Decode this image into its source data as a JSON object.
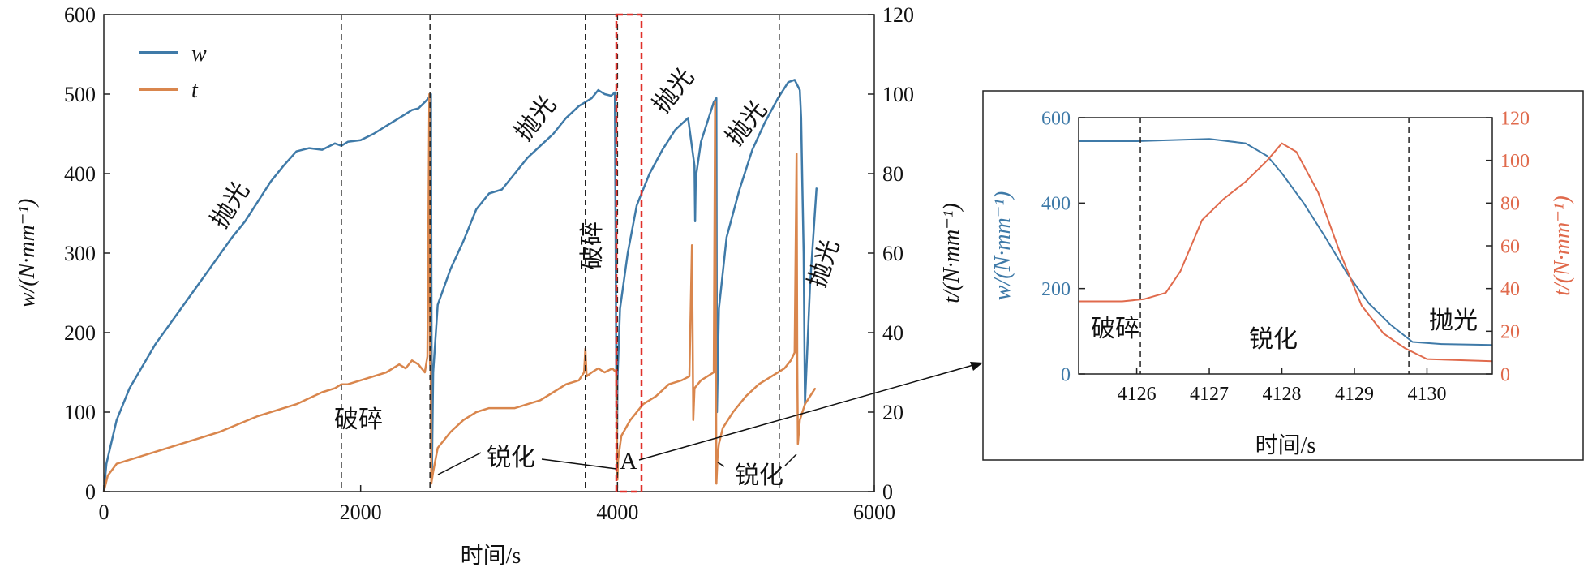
{
  "chart_data": [
    {
      "type": "line",
      "xlabel": "时间/s",
      "ylabel": "w/(N·mm⁻¹)",
      "ylabel2": "t/(N·mm⁻¹)",
      "xlim": [
        0,
        6000
      ],
      "ylim": [
        0,
        600
      ],
      "ylim2": [
        0,
        120
      ],
      "xticks": [
        "0",
        "2000",
        "4000",
        "6000"
      ],
      "yticks": [
        "0",
        "100",
        "200",
        "300",
        "400",
        "500",
        "600"
      ],
      "yticks2": [
        "0",
        "20",
        "40",
        "60",
        "80",
        "100",
        "120"
      ],
      "legend": {
        "position": "top-left",
        "entries": [
          "w",
          "t"
        ]
      },
      "series": [
        {
          "name": "w",
          "color": "#3f7aa8",
          "axis": "left",
          "x": [
            0,
            20,
            100,
            200,
            400,
            600,
            800,
            1000,
            1100,
            1200,
            1300,
            1400,
            1500,
            1600,
            1700,
            1800,
            1850,
            1900,
            2000,
            2100,
            2200,
            2300,
            2400,
            2450,
            2500,
            2530,
            2548,
            2555,
            2565,
            2600,
            2700,
            2800,
            2900,
            3000,
            3100,
            3200,
            3300,
            3400,
            3500,
            3600,
            3700,
            3750,
            3800,
            3850,
            3900,
            3950,
            3980,
            3995,
            4000,
            4020,
            4080,
            4150,
            4250,
            4350,
            4450,
            4550,
            4600,
            4605,
            4610,
            4650,
            4700,
            4750,
            4770,
            4775,
            4790,
            4850,
            4950,
            5050,
            5150,
            5250,
            5330,
            5380,
            5420,
            5430,
            5440,
            5450,
            5460,
            5500,
            5550
          ],
          "values": [
            0,
            35,
            90,
            130,
            185,
            230,
            275,
            320,
            340,
            365,
            390,
            410,
            428,
            432,
            430,
            438,
            435,
            440,
            442,
            450,
            460,
            470,
            480,
            482,
            490,
            495,
            500,
            20,
            150,
            235,
            280,
            315,
            355,
            375,
            380,
            400,
            420,
            435,
            450,
            470,
            485,
            490,
            495,
            505,
            500,
            498,
            502,
            15,
            140,
            230,
            300,
            360,
            400,
            430,
            455,
            470,
            410,
            340,
            395,
            440,
            465,
            490,
            495,
            100,
            230,
            320,
            380,
            430,
            465,
            495,
            515,
            518,
            505,
            470,
            385,
            300,
            110,
            260,
            382
          ]
        },
        {
          "name": "t",
          "color": "#d9864d",
          "axis": "right",
          "x": [
            0,
            30,
            100,
            300,
            600,
            900,
            1200,
            1500,
            1700,
            1800,
            1850,
            1900,
            2000,
            2100,
            2200,
            2300,
            2350,
            2400,
            2450,
            2500,
            2520,
            2535,
            2540,
            2545,
            2550,
            2565,
            2600,
            2700,
            2800,
            2900,
            3000,
            3100,
            3200,
            3300,
            3400,
            3500,
            3600,
            3700,
            3740,
            3750,
            3760,
            3800,
            3850,
            3900,
            3960,
            3990,
            4000,
            4005,
            4030,
            4100,
            4200,
            4300,
            4400,
            4500,
            4560,
            4580,
            4590,
            4600,
            4650,
            4700,
            4750,
            4760,
            4770,
            4780,
            4790,
            4820,
            4900,
            5000,
            5100,
            5200,
            5300,
            5350,
            5380,
            5395,
            5400,
            5405,
            5420,
            5460,
            5500,
            5540
          ],
          "values": [
            0,
            4,
            7,
            9,
            12,
            15,
            19,
            22,
            25,
            26,
            27,
            27,
            28,
            29,
            30,
            32,
            31,
            33,
            32,
            30,
            34,
            100,
            32,
            36,
            2,
            5,
            11,
            15,
            18,
            20,
            21,
            21,
            21,
            22,
            23,
            25,
            27,
            28,
            30,
            36,
            29,
            30,
            31,
            30,
            31,
            30,
            3,
            8,
            14,
            18,
            22,
            24,
            27,
            28,
            29,
            62,
            18,
            26,
            28,
            29,
            30,
            98,
            2,
            9,
            12,
            16,
            20,
            24,
            27,
            29,
            31,
            33,
            35,
            85,
            33,
            12,
            18,
            22,
            24,
            26
          ]
        }
      ],
      "annotations": [
        "抛光",
        "破碎",
        "锐化",
        "抛光",
        "破碎",
        "抛光",
        "抛光",
        "抛光",
        "锐化",
        "A"
      ],
      "phase_boundaries_x": [
        1850,
        2540,
        3750,
        4000,
        5260
      ]
    },
    {
      "type": "line",
      "xlabel": "时间/s",
      "ylabel": "w/(N·mm⁻¹)",
      "ylabel2": "t/(N·mm⁻¹)",
      "xlim": [
        4125.2,
        4130.9
      ],
      "ylim": [
        0,
        600
      ],
      "ylim2": [
        0,
        120
      ],
      "xticks": [
        "4126",
        "4127",
        "4128",
        "4129",
        "4130"
      ],
      "yticks": [
        "0",
        "200",
        "400",
        "600"
      ],
      "yticks2": [
        "0",
        "20",
        "40",
        "60",
        "80",
        "100",
        "120"
      ],
      "series": [
        {
          "name": "w",
          "color": "#3f7aa8",
          "axis": "left",
          "x": [
            4125.2,
            4126.0,
            4127.0,
            4127.5,
            4127.8,
            4128.0,
            4128.3,
            4128.6,
            4128.9,
            4129.2,
            4129.5,
            4129.8,
            4130.2,
            4130.9
          ],
          "values": [
            545,
            545,
            550,
            540,
            510,
            470,
            400,
            320,
            235,
            165,
            115,
            75,
            70,
            68
          ]
        },
        {
          "name": "t",
          "color": "#e06a4c",
          "axis": "right",
          "x": [
            4125.2,
            4125.8,
            4126.1,
            4126.4,
            4126.6,
            4126.9,
            4127.2,
            4127.5,
            4127.8,
            4128.0,
            4128.2,
            4128.5,
            4128.8,
            4129.1,
            4129.4,
            4129.7,
            4130.0,
            4130.9
          ],
          "values": [
            34,
            34,
            35,
            38,
            48,
            72,
            82,
            90,
            100,
            108,
            104,
            85,
            57,
            32,
            19,
            12,
            7,
            6
          ]
        }
      ],
      "annotations": [
        "破碎",
        "锐化",
        "抛光"
      ],
      "phase_boundaries_x": [
        4126.05,
        4129.75
      ]
    }
  ]
}
